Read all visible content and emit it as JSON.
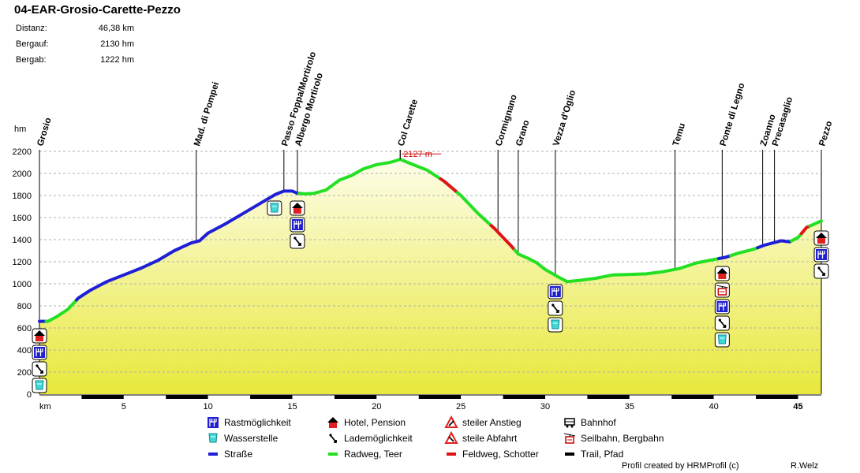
{
  "title": "04-EAR-Grosio-Carette-Pezzo",
  "stats": [
    {
      "label": "Distanz:",
      "value": "46,38 km"
    },
    {
      "label": "Bergauf:",
      "value": "2130 hm"
    },
    {
      "label": "Bergab:",
      "value": "1222 hm"
    }
  ],
  "credits": {
    "left": "Profil created by HRMProfil (c)",
    "right": "R.Welz"
  },
  "chart_data": {
    "type": "area",
    "ylabel": "hm",
    "xlabel": "km",
    "xlim": [
      0,
      46.38
    ],
    "ylim": [
      0,
      2200
    ],
    "yticks": [
      0,
      200,
      400,
      600,
      800,
      1000,
      1200,
      1400,
      1600,
      1800,
      2000,
      2200
    ],
    "xticks": [
      5,
      10,
      15,
      20,
      25,
      30,
      35,
      40,
      45
    ],
    "peak_label": "2127 m",
    "peak": {
      "x": 21.4,
      "y": 2127
    },
    "profile": [
      [
        0,
        660
      ],
      [
        0.5,
        660
      ],
      [
        1,
        700
      ],
      [
        1.7,
        770
      ],
      [
        2.3,
        870
      ],
      [
        3,
        940
      ],
      [
        4,
        1020
      ],
      [
        5,
        1080
      ],
      [
        6,
        1140
      ],
      [
        7,
        1210
      ],
      [
        8,
        1300
      ],
      [
        9,
        1370
      ],
      [
        9.5,
        1390
      ],
      [
        10,
        1460
      ],
      [
        11,
        1540
      ],
      [
        12,
        1630
      ],
      [
        13,
        1720
      ],
      [
        14,
        1810
      ],
      [
        14.5,
        1840
      ],
      [
        15,
        1840
      ],
      [
        15.3,
        1820
      ],
      [
        15.8,
        1815
      ],
      [
        16.3,
        1820
      ],
      [
        17,
        1850
      ],
      [
        17.8,
        1940
      ],
      [
        18.5,
        1980
      ],
      [
        19.2,
        2040
      ],
      [
        20,
        2080
      ],
      [
        20.8,
        2100
      ],
      [
        21.4,
        2127
      ],
      [
        22,
        2090
      ],
      [
        23,
        2030
      ],
      [
        24,
        1930
      ],
      [
        25,
        1800
      ],
      [
        26,
        1640
      ],
      [
        27,
        1500
      ],
      [
        28,
        1340
      ],
      [
        28.4,
        1270
      ],
      [
        29,
        1230
      ],
      [
        29.5,
        1190
      ],
      [
        30,
        1130
      ],
      [
        30.8,
        1060
      ],
      [
        31.3,
        1020
      ],
      [
        32,
        1030
      ],
      [
        33,
        1050
      ],
      [
        34,
        1080
      ],
      [
        35,
        1085
      ],
      [
        36,
        1090
      ],
      [
        37,
        1110
      ],
      [
        38,
        1140
      ],
      [
        39,
        1190
      ],
      [
        40,
        1220
      ],
      [
        40.7,
        1240
      ],
      [
        41.5,
        1280
      ],
      [
        42.3,
        1310
      ],
      [
        43,
        1350
      ],
      [
        43.5,
        1370
      ],
      [
        44,
        1390
      ],
      [
        44.5,
        1380
      ],
      [
        45,
        1420
      ],
      [
        45.5,
        1510
      ],
      [
        46.38,
        1570
      ]
    ],
    "surface_segments": [
      {
        "from": 0,
        "to": 0.4,
        "type": "road"
      },
      {
        "from": 0.4,
        "to": 2.2,
        "type": "cycleway"
      },
      {
        "from": 2.2,
        "to": 15.4,
        "type": "road"
      },
      {
        "from": 15.4,
        "to": 23.8,
        "type": "cycleway"
      },
      {
        "from": 23.8,
        "to": 24.8,
        "type": "gravel"
      },
      {
        "from": 24.8,
        "to": 26.8,
        "type": "cycleway"
      },
      {
        "from": 26.8,
        "to": 27.3,
        "type": "gravel"
      },
      {
        "from": 27.3,
        "to": 28.2,
        "type": "gravel"
      },
      {
        "from": 28.2,
        "to": 31.3,
        "type": "cycleway"
      },
      {
        "from": 31.3,
        "to": 40.3,
        "type": "cycleway"
      },
      {
        "from": 40.3,
        "to": 41,
        "type": "road"
      },
      {
        "from": 41,
        "to": 42.6,
        "type": "cycleway"
      },
      {
        "from": 42.6,
        "to": 44.6,
        "type": "road"
      },
      {
        "from": 44.6,
        "to": 45.2,
        "type": "cycleway"
      },
      {
        "from": 45.2,
        "to": 45.7,
        "type": "gravel"
      },
      {
        "from": 45.7,
        "to": 46.38,
        "type": "cycleway"
      }
    ],
    "waypoints": [
      {
        "name": "Grosio",
        "km": 0,
        "lines": [
          "Grosio"
        ],
        "icons": [
          "hotel",
          "rest",
          "loading",
          "water"
        ]
      },
      {
        "name": "Mad. di Pompei",
        "km": 9.3,
        "lines": [
          "Mad. di Pompei"
        ],
        "icons": []
      },
      {
        "name": "Passo Foppa/Mortirolo",
        "km": 14.5,
        "lines": [
          "Passo Foppa/Mortirolo"
        ],
        "icons": [
          "water"
        ]
      },
      {
        "name": "Albergo Mortirolo",
        "km": 15.3,
        "lines": [
          "Albergo Mortirolo"
        ],
        "icons": [
          "hotel",
          "rest",
          "loading"
        ]
      },
      {
        "name": "Col Carette",
        "km": 21.4,
        "lines": [
          "Col Carette"
        ],
        "icons": []
      },
      {
        "name": "Cormignano",
        "km": 27.2,
        "lines": [
          "Cormignano"
        ],
        "icons": []
      },
      {
        "name": "Grano",
        "km": 28.4,
        "lines": [
          "Grano"
        ],
        "icons": []
      },
      {
        "name": "Vezza d'Oglio",
        "km": 30.6,
        "lines": [
          "Vezza d'Oglio"
        ],
        "icons": [
          "rest",
          "loading",
          "water"
        ]
      },
      {
        "name": "Temu",
        "km": 37.7,
        "lines": [
          "Temu"
        ],
        "icons": []
      },
      {
        "name": "Ponte di Legno",
        "km": 40.5,
        "lines": [
          "Ponte di Legno"
        ],
        "icons": [
          "hotel",
          "cablecar",
          "rest",
          "loading",
          "water"
        ]
      },
      {
        "name": "Zoanno",
        "km": 42.9,
        "lines": [
          "Zoanno"
        ],
        "icons": []
      },
      {
        "name": "Precasaglio",
        "km": 43.6,
        "lines": [
          "Precasaglio"
        ],
        "icons": []
      },
      {
        "name": "Pezzo",
        "km": 46.38,
        "lines": [
          "Pezzo"
        ],
        "icons": [
          "hotel",
          "rest",
          "loading"
        ]
      }
    ],
    "legend": [
      {
        "icon": "rest",
        "label": "Rastmöglichkeit"
      },
      {
        "icon": "water",
        "label": "Wasserstelle"
      },
      {
        "icon": "road",
        "label": "Straße"
      },
      {
        "icon": "hotel",
        "label": "Hotel, Pension"
      },
      {
        "icon": "loading",
        "label": "Lademöglichkeit"
      },
      {
        "icon": "cycleway",
        "label": "Radweg, Teer"
      },
      {
        "icon": "steep-up",
        "label": "steiler Anstieg"
      },
      {
        "icon": "steep-down",
        "label": "steile Abfahrt"
      },
      {
        "icon": "gravel",
        "label": "Feldweg, Schotter"
      },
      {
        "icon": "train",
        "label": "Bahnhof"
      },
      {
        "icon": "cablecar",
        "label": "Seilbahn, Bergbahn"
      },
      {
        "icon": "trail",
        "label": "Trail, Pfad"
      }
    ],
    "colors": {
      "road": "#1f1fd6",
      "cycleway": "#23e023",
      "gravel": "#e01414",
      "trail": "#000000",
      "fill_top": "#fdfde8",
      "fill_bottom": "#e8e83c",
      "grid": "#b0b0b0"
    }
  }
}
